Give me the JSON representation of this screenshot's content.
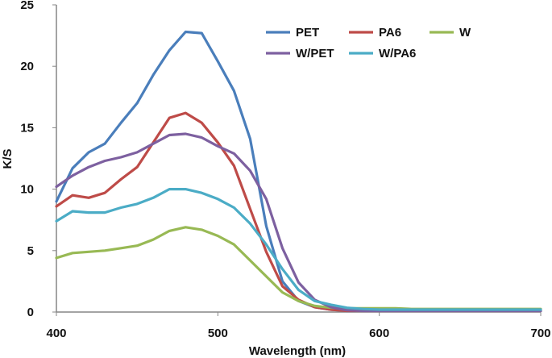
{
  "chart_data": {
    "type": "line",
    "title": "",
    "xlabel": "Wavelength (nm)",
    "ylabel": "K/S",
    "xlim": [
      400,
      700
    ],
    "ylim": [
      0,
      25
    ],
    "xticks": [
      400,
      500,
      600,
      700
    ],
    "yticks": [
      0,
      5,
      10,
      15,
      20,
      25
    ],
    "grid": false,
    "legend_position": "top-right",
    "series": [
      {
        "name": "PET",
        "color": "#4a7ebb",
        "x": [
          400,
          410,
          420,
          430,
          440,
          450,
          460,
          470,
          480,
          490,
          500,
          510,
          520,
          530,
          540,
          550,
          560,
          570,
          580,
          590,
          600,
          610,
          620,
          630,
          640,
          650,
          660,
          670,
          680,
          690,
          700
        ],
        "y": [
          9.0,
          11.7,
          13.0,
          13.7,
          15.4,
          17.0,
          19.3,
          21.3,
          22.8,
          22.7,
          20.4,
          18.0,
          14.1,
          7.0,
          2.5,
          0.9,
          0.4,
          0.2,
          0.1,
          0.1,
          0.1,
          0.1,
          0.1,
          0.1,
          0.1,
          0.1,
          0.1,
          0.1,
          0.1,
          0.1,
          0.1
        ]
      },
      {
        "name": "PA6",
        "color": "#be4b48",
        "x": [
          400,
          410,
          420,
          430,
          440,
          450,
          460,
          470,
          480,
          490,
          500,
          510,
          520,
          530,
          540,
          550,
          560,
          570,
          580,
          590,
          600,
          610,
          620,
          630,
          640,
          650,
          660,
          670,
          680,
          690,
          700
        ],
        "y": [
          8.6,
          9.5,
          9.3,
          9.7,
          10.8,
          11.8,
          13.8,
          15.8,
          16.2,
          15.4,
          13.8,
          11.9,
          8.4,
          4.9,
          2.1,
          1.0,
          0.4,
          0.2,
          0.1,
          0.1,
          0.1,
          0.1,
          0.1,
          0.1,
          0.1,
          0.1,
          0.1,
          0.1,
          0.1,
          0.1,
          0.1
        ]
      },
      {
        "name": "W",
        "color": "#98b954",
        "x": [
          400,
          410,
          420,
          430,
          440,
          450,
          460,
          470,
          480,
          490,
          500,
          510,
          520,
          530,
          540,
          550,
          560,
          570,
          580,
          590,
          600,
          610,
          620,
          630,
          640,
          650,
          660,
          670,
          680,
          690,
          700
        ],
        "y": [
          4.4,
          4.8,
          4.9,
          5.0,
          5.2,
          5.4,
          5.9,
          6.6,
          6.9,
          6.7,
          6.2,
          5.5,
          4.2,
          2.9,
          1.6,
          0.9,
          0.5,
          0.35,
          0.3,
          0.3,
          0.3,
          0.3,
          0.25,
          0.25,
          0.25,
          0.25,
          0.25,
          0.25,
          0.25,
          0.25,
          0.25
        ]
      },
      {
        "name": "W/PET",
        "color": "#7d60a0",
        "x": [
          400,
          410,
          420,
          430,
          440,
          450,
          460,
          470,
          480,
          490,
          500,
          510,
          520,
          530,
          540,
          550,
          560,
          570,
          580,
          590,
          600,
          610,
          620,
          630,
          640,
          650,
          660,
          670,
          680,
          690,
          700
        ],
        "y": [
          10.2,
          11.1,
          11.8,
          12.3,
          12.6,
          13.0,
          13.7,
          14.4,
          14.5,
          14.2,
          13.5,
          12.9,
          11.5,
          9.2,
          5.2,
          2.4,
          1.0,
          0.4,
          0.15,
          0.1,
          0.1,
          0.1,
          0.1,
          0.1,
          0.1,
          0.1,
          0.1,
          0.1,
          0.1,
          0.1,
          0.1
        ]
      },
      {
        "name": "W/PA6",
        "color": "#4bacc6",
        "x": [
          400,
          410,
          420,
          430,
          440,
          450,
          460,
          470,
          480,
          490,
          500,
          510,
          520,
          530,
          540,
          550,
          560,
          570,
          580,
          590,
          600,
          610,
          620,
          630,
          640,
          650,
          660,
          670,
          680,
          690,
          700
        ],
        "y": [
          7.4,
          8.2,
          8.1,
          8.1,
          8.5,
          8.8,
          9.3,
          10.0,
          10.0,
          9.7,
          9.2,
          8.5,
          7.2,
          5.5,
          3.5,
          1.8,
          0.9,
          0.6,
          0.35,
          0.25,
          0.2,
          0.2,
          0.2,
          0.2,
          0.2,
          0.2,
          0.2,
          0.2,
          0.2,
          0.2,
          0.2
        ]
      }
    ]
  }
}
